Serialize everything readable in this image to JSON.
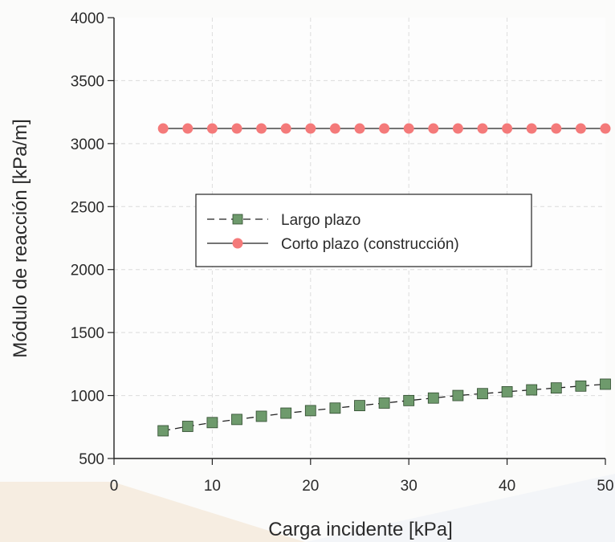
{
  "chart_data": {
    "type": "line",
    "title": "",
    "xlabel": "Carga incidente [kPa]",
    "ylabel": "Módulo de reacción [kPa/m]",
    "xlim": [
      0,
      50
    ],
    "ylim": [
      500,
      4000
    ],
    "xticks": [
      0,
      10,
      20,
      30,
      40,
      50
    ],
    "yticks": [
      500,
      1000,
      1500,
      2000,
      2500,
      3000,
      3500,
      4000
    ],
    "grid": true,
    "legend_position": "center-right",
    "x": [
      5,
      7.5,
      10,
      12.5,
      15,
      17.5,
      20,
      22.5,
      25,
      27.5,
      30,
      32.5,
      35,
      37.5,
      40,
      42.5,
      45,
      47.5,
      50
    ],
    "series": [
      {
        "name": "Largo plazo",
        "marker": "square",
        "line_style": "dashed",
        "color": "#6e9a6c",
        "values": [
          720,
          755,
          785,
          810,
          835,
          860,
          880,
          900,
          920,
          940,
          960,
          980,
          1000,
          1015,
          1030,
          1045,
          1060,
          1075,
          1090
        ]
      },
      {
        "name": "Corto plazo (construcción)",
        "marker": "circle",
        "line_style": "solid",
        "color": "#f47a7a",
        "values": [
          3120,
          3120,
          3120,
          3120,
          3120,
          3120,
          3120,
          3120,
          3120,
          3120,
          3120,
          3120,
          3120,
          3120,
          3120,
          3120,
          3120,
          3120,
          3120
        ]
      }
    ]
  }
}
